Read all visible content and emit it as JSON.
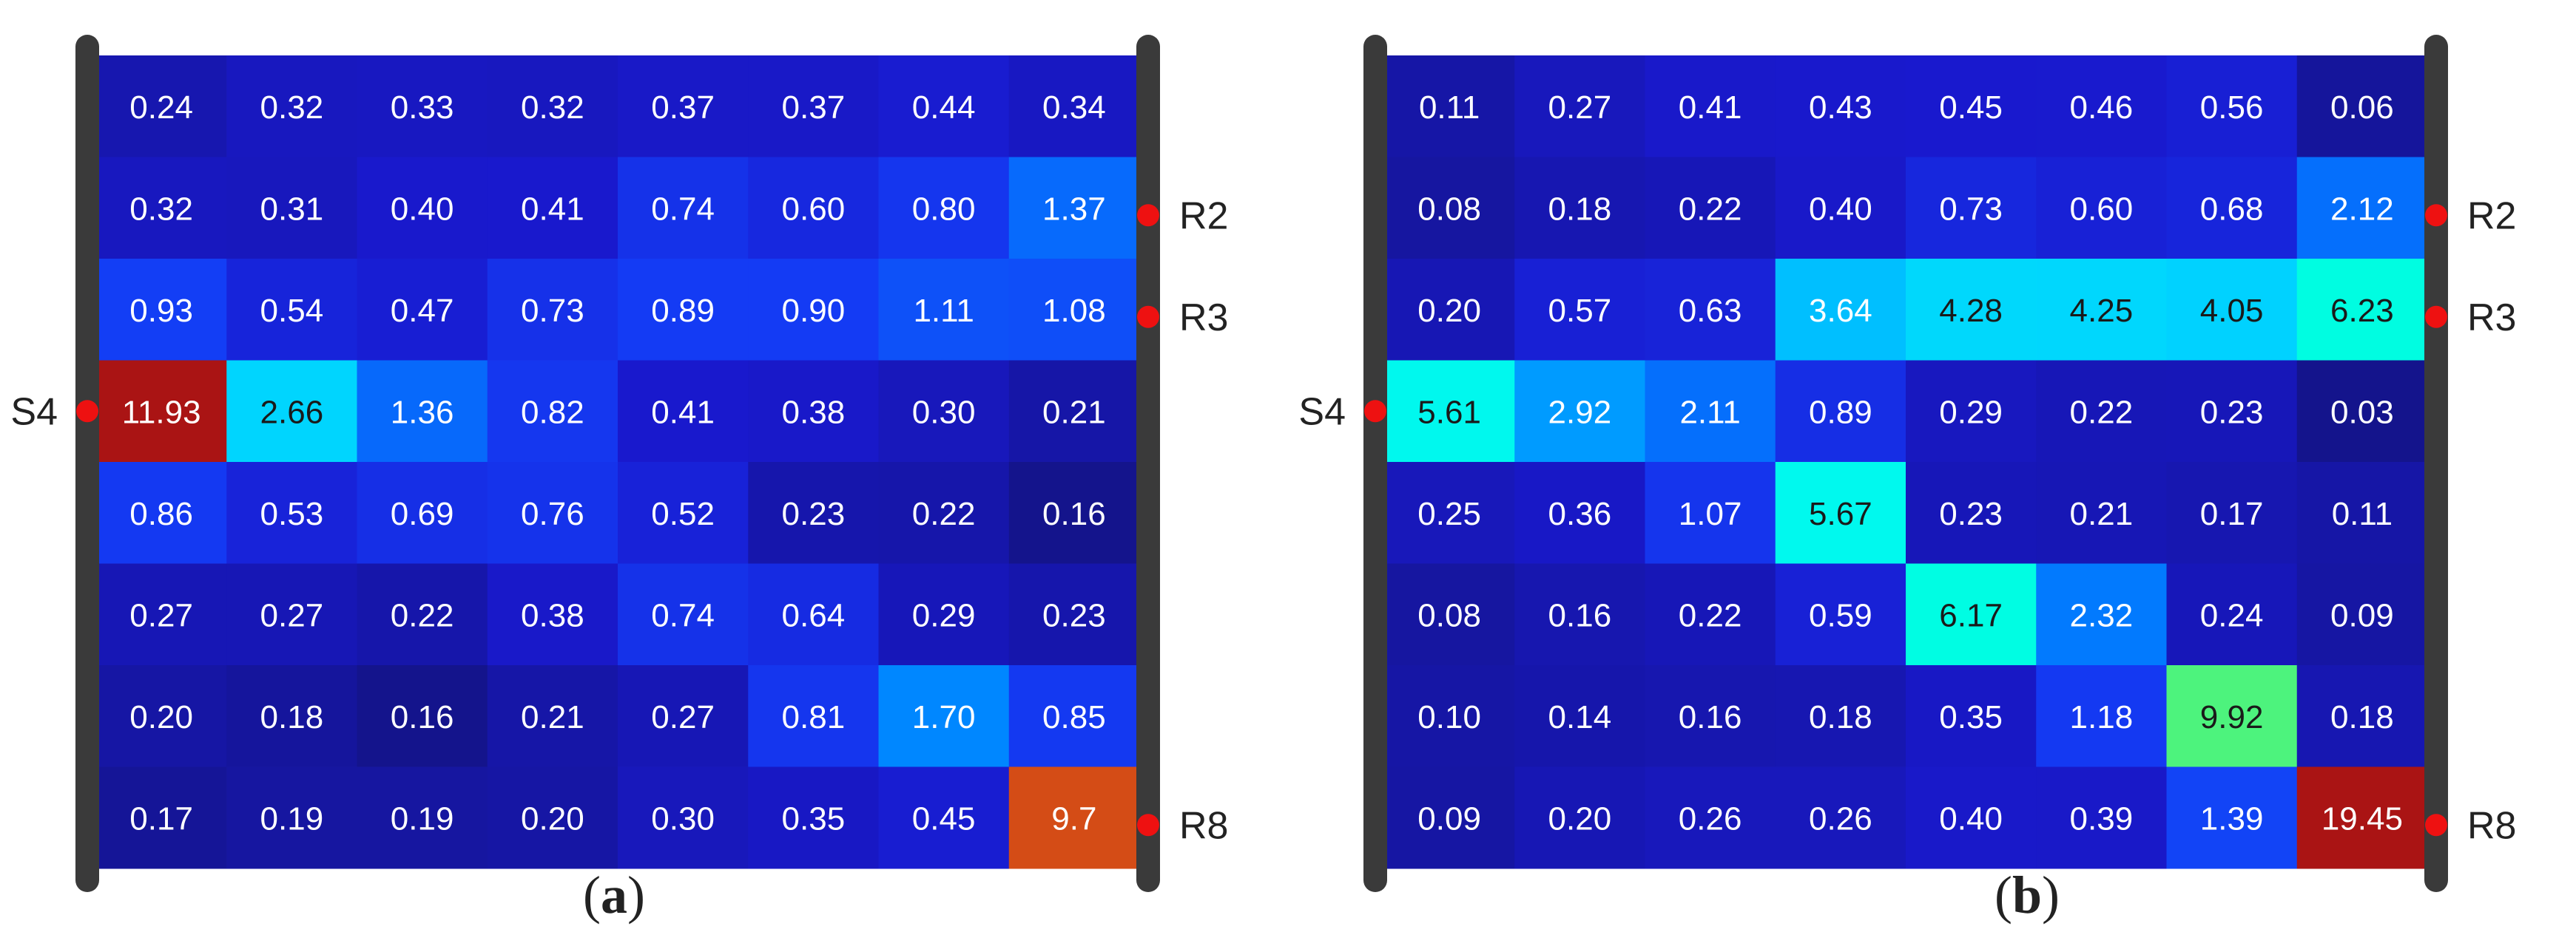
{
  "chart_data": [
    {
      "type": "heatmap",
      "panel_label": "(a)",
      "panel_letter": "a",
      "source_label": "S4",
      "source_row": 3,
      "receivers": [
        {
          "label": "R2",
          "row": 1
        },
        {
          "label": "R3",
          "row": 2
        },
        {
          "label": "R8",
          "row": 7
        }
      ],
      "values": [
        [
          "0.24",
          "0.32",
          "0.33",
          "0.32",
          "0.37",
          "0.37",
          "0.44",
          "0.34"
        ],
        [
          "0.32",
          "0.31",
          "0.40",
          "0.41",
          "0.74",
          "0.60",
          "0.80",
          "1.37"
        ],
        [
          "0.93",
          "0.54",
          "0.47",
          "0.73",
          "0.89",
          "0.90",
          "1.11",
          "1.08"
        ],
        [
          "11.93",
          "2.66",
          "1.36",
          "0.82",
          "0.41",
          "0.38",
          "0.30",
          "0.21"
        ],
        [
          "0.86",
          "0.53",
          "0.69",
          "0.76",
          "0.52",
          "0.23",
          "0.22",
          "0.16"
        ],
        [
          "0.27",
          "0.27",
          "0.22",
          "0.38",
          "0.74",
          "0.64",
          "0.29",
          "0.23"
        ],
        [
          "0.20",
          "0.18",
          "0.16",
          "0.21",
          "0.27",
          "0.81",
          "1.70",
          "0.85"
        ],
        [
          "0.17",
          "0.19",
          "0.19",
          "0.20",
          "0.30",
          "0.35",
          "0.45",
          "9.7"
        ]
      ]
    },
    {
      "type": "heatmap",
      "panel_label": "(b)",
      "panel_letter": "b",
      "source_label": "S4",
      "source_row": 3,
      "receivers": [
        {
          "label": "R2",
          "row": 1
        },
        {
          "label": "R3",
          "row": 2
        },
        {
          "label": "R8",
          "row": 7
        }
      ],
      "values": [
        [
          "0.11",
          "0.27",
          "0.41",
          "0.43",
          "0.45",
          "0.46",
          "0.56",
          "0.06"
        ],
        [
          "0.08",
          "0.18",
          "0.22",
          "0.40",
          "0.73",
          "0.60",
          "0.68",
          "2.12"
        ],
        [
          "0.20",
          "0.57",
          "0.63",
          "3.64",
          "4.28",
          "4.25",
          "4.05",
          "6.23"
        ],
        [
          "5.61",
          "2.92",
          "2.11",
          "0.89",
          "0.29",
          "0.22",
          "0.23",
          "0.03"
        ],
        [
          "0.25",
          "0.36",
          "1.07",
          "5.67",
          "0.23",
          "0.21",
          "0.17",
          "0.11"
        ],
        [
          "0.08",
          "0.16",
          "0.22",
          "0.59",
          "6.17",
          "2.32",
          "0.24",
          "0.09"
        ],
        [
          "0.10",
          "0.14",
          "0.16",
          "0.18",
          "0.35",
          "1.18",
          "9.92",
          "0.18"
        ],
        [
          "0.09",
          "0.20",
          "0.26",
          "0.26",
          "0.40",
          "0.39",
          "1.39",
          "19.45"
        ]
      ]
    }
  ]
}
